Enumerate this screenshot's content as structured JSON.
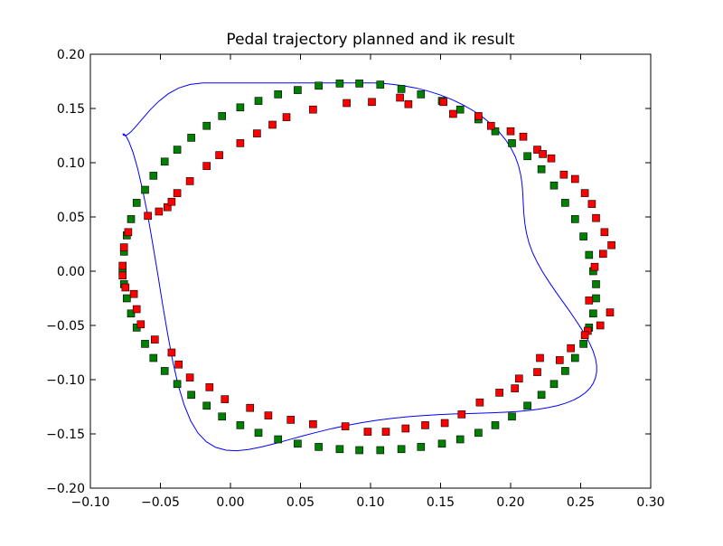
{
  "chart_data": {
    "type": "scatter",
    "title": "Pedal trajectory planned and ik result",
    "xlabel": "",
    "ylabel": "",
    "xlim": [
      -0.1,
      0.3
    ],
    "ylim": [
      -0.2,
      0.2
    ],
    "x_ticks": [
      "−0.10",
      "−0.05",
      "0.00",
      "0.05",
      "0.10",
      "0.15",
      "0.20",
      "0.25",
      "0.30"
    ],
    "y_ticks": [
      "−0.20",
      "−0.15",
      "−0.10",
      "−0.05",
      "0.00",
      "0.05",
      "0.10",
      "0.15",
      "0.20"
    ],
    "x_tick_values": [
      -0.1,
      -0.05,
      0.0,
      0.05,
      0.1,
      0.15,
      0.2,
      0.25,
      0.3
    ],
    "y_tick_values": [
      -0.2,
      -0.15,
      -0.1,
      -0.05,
      0.0,
      0.05,
      0.1,
      0.15,
      0.2
    ],
    "grid": false,
    "legend": "none",
    "series": [
      {
        "style": "line",
        "color": "#0000ff",
        "x": [
          0.0925,
          0.1026,
          0.1126,
          0.1224,
          0.132,
          0.1412,
          0.1501,
          0.1586,
          0.1665,
          0.1739,
          0.1806,
          0.1867,
          0.192,
          0.1966,
          0.2004,
          0.2034,
          0.2057,
          0.2072,
          0.2082,
          0.2087,
          0.209,
          0.2094,
          0.2101,
          0.2113,
          0.2131,
          0.2157,
          0.219,
          0.223,
          0.2274,
          0.232,
          0.2367,
          0.2414,
          0.2458,
          0.2499,
          0.2536,
          0.2566,
          0.259,
          0.2606,
          0.2614,
          0.2614,
          0.2606,
          0.259,
          0.2566,
          0.2534,
          0.2495,
          0.2449,
          0.2396,
          0.2337,
          0.2272,
          0.2201,
          0.2126,
          0.2045,
          0.196,
          0.187,
          0.1777,
          0.168,
          0.158,
          0.1477,
          0.1372,
          0.1265,
          0.1157,
          0.1048,
          0.0939,
          0.083,
          0.0722,
          0.0616,
          0.0512,
          0.0411,
          0.0313,
          0.0219,
          0.013,
          0.0046,
          -0.0032,
          -0.0105,
          -0.0171,
          -0.0231,
          -0.0284,
          -0.0331,
          -0.0374,
          -0.0412,
          -0.0448,
          -0.0483,
          -0.0518,
          -0.0554,
          -0.059,
          -0.0627,
          -0.0662,
          -0.0694,
          -0.0723,
          -0.0745,
          -0.076,
          -0.0767,
          -0.0765,
          -0.0755,
          -0.0736,
          -0.0708,
          -0.0672,
          -0.0627,
          -0.0574,
          -0.0513,
          -0.0444,
          -0.0369,
          -0.0287,
          -0.0198,
          -0.0105,
          -0.0006,
          0.0097,
          0.0203,
          0.0311,
          0.0421,
          0.0532,
          0.0643,
          0.0753,
          0.0862,
          0.0925
        ],
        "y": [
          0.1735,
          0.1735,
          0.1727,
          0.1712,
          0.169,
          0.166,
          0.1623,
          0.158,
          0.153,
          0.1475,
          0.1415,
          0.135,
          0.1281,
          0.1208,
          0.1132,
          0.1053,
          0.0971,
          0.0887,
          0.0801,
          0.0714,
          0.0625,
          0.0535,
          0.0444,
          0.0353,
          0.0262,
          0.0171,
          0.0081,
          -0.0009,
          -0.0098,
          -0.0186,
          -0.0272,
          -0.0356,
          -0.0438,
          -0.0518,
          -0.0595,
          -0.0669,
          -0.0739,
          -0.0806,
          -0.0869,
          -0.0928,
          -0.0983,
          -0.1033,
          -0.1079,
          -0.112,
          -0.1156,
          -0.1188,
          -0.1215,
          -0.1238,
          -0.1257,
          -0.1272,
          -0.1284,
          -0.1293,
          -0.13,
          -0.1305,
          -0.1309,
          -0.1313,
          -0.1317,
          -0.1323,
          -0.1331,
          -0.1342,
          -0.1356,
          -0.1374,
          -0.1396,
          -0.1422,
          -0.1452,
          -0.1485,
          -0.152,
          -0.1556,
          -0.1591,
          -0.1621,
          -0.1644,
          -0.1655,
          -0.165,
          -0.1624,
          -0.1573,
          -0.1493,
          -0.138,
          -0.1231,
          -0.1046,
          -0.0829,
          -0.0583,
          -0.0315,
          -0.0034,
          0.0246,
          0.0512,
          0.0748,
          0.0943,
          0.109,
          0.1189,
          0.1245,
          0.1266,
          0.1265,
          0.1255,
          0.1249,
          0.1258,
          0.1288,
          0.1339,
          0.1407,
          0.1486,
          0.1565,
          0.1636,
          0.1689,
          0.1722,
          0.1735,
          0.1735,
          0.1735,
          0.1735,
          0.1735,
          0.1735,
          0.1735,
          0.1735,
          0.1735,
          0.1735,
          0.1735,
          0.1735
        ]
      },
      {
        "name": "",
        "style": "marker",
        "marker": "square",
        "color": "#008000",
        "x": [
          0.092,
          0.107,
          0.122,
          0.136,
          0.151,
          0.164,
          0.177,
          0.189,
          0.201,
          0.212,
          0.222,
          0.231,
          0.239,
          0.246,
          0.252,
          0.256,
          0.259,
          0.261,
          0.261,
          0.259,
          0.256,
          0.252,
          0.246,
          0.239,
          0.231,
          0.222,
          0.212,
          0.201,
          0.189,
          0.177,
          0.164,
          0.151,
          0.136,
          0.122,
          0.107,
          0.092,
          0.078,
          0.063,
          0.048,
          0.034,
          0.02,
          0.007,
          -0.006,
          -0.017,
          -0.028,
          -0.038,
          -0.047,
          -0.055,
          -0.061,
          -0.067,
          -0.071,
          -0.074,
          -0.076,
          -0.077,
          -0.076,
          -0.074,
          -0.071,
          -0.067,
          -0.061,
          -0.055,
          -0.047,
          -0.038,
          -0.028,
          -0.017,
          -0.006,
          0.007,
          0.02,
          0.034,
          0.048,
          0.063,
          0.078
        ],
        "y": [
          0.173,
          0.172,
          0.168,
          0.163,
          0.157,
          0.149,
          0.14,
          0.129,
          0.118,
          0.106,
          0.094,
          0.079,
          0.063,
          0.048,
          0.032,
          0.015,
          0.0,
          -0.012,
          -0.025,
          -0.039,
          -0.052,
          -0.067,
          -0.08,
          -0.092,
          -0.104,
          -0.114,
          -0.124,
          -0.134,
          -0.142,
          -0.149,
          -0.155,
          -0.159,
          -0.162,
          -0.164,
          -0.165,
          -0.165,
          -0.164,
          -0.162,
          -0.159,
          -0.155,
          -0.149,
          -0.142,
          -0.134,
          -0.124,
          -0.114,
          -0.104,
          -0.092,
          -0.08,
          -0.067,
          -0.052,
          -0.039,
          -0.025,
          -0.012,
          0.0,
          0.018,
          0.033,
          0.048,
          0.063,
          0.075,
          0.088,
          0.101,
          0.112,
          0.123,
          0.134,
          0.143,
          0.151,
          0.157,
          0.163,
          0.167,
          0.171,
          0.173
        ]
      },
      {
        "name": "",
        "style": "marker",
        "marker": "square",
        "color": "#ff0000",
        "x": [
          0.101,
          0.121,
          0.127,
          0.152,
          0.159,
          0.177,
          0.186,
          0.2,
          0.209,
          0.219,
          0.223,
          0.229,
          0.238,
          0.246,
          0.253,
          0.258,
          0.261,
          0.267,
          0.272,
          0.266,
          0.26,
          0.256,
          0.271,
          0.264,
          0.255,
          0.253,
          0.243,
          0.235,
          0.221,
          0.219,
          0.206,
          0.203,
          0.192,
          0.178,
          0.165,
          0.153,
          0.139,
          0.125,
          0.111,
          0.098,
          0.082,
          0.059,
          0.043,
          0.027,
          0.014,
          -0.004,
          -0.015,
          -0.029,
          -0.037,
          -0.042,
          -0.054,
          -0.064,
          -0.067,
          -0.069,
          -0.075,
          -0.077,
          -0.077,
          -0.076,
          -0.073,
          -0.059,
          -0.051,
          -0.045,
          -0.042,
          -0.038,
          -0.029,
          -0.017,
          -0.008,
          0.007,
          0.019,
          0.03,
          0.04,
          0.059,
          0.083
        ],
        "y": [
          0.156,
          0.16,
          0.154,
          0.156,
          0.145,
          0.143,
          0.134,
          0.129,
          0.124,
          0.112,
          0.108,
          0.104,
          0.089,
          0.085,
          0.072,
          0.062,
          0.049,
          0.036,
          0.024,
          0.016,
          0.004,
          -0.027,
          -0.038,
          -0.05,
          -0.055,
          -0.059,
          -0.071,
          -0.082,
          -0.08,
          -0.093,
          -0.099,
          -0.108,
          -0.112,
          -0.121,
          -0.132,
          -0.14,
          -0.142,
          -0.145,
          -0.148,
          -0.148,
          -0.143,
          -0.141,
          -0.137,
          -0.133,
          -0.126,
          -0.118,
          -0.107,
          -0.098,
          -0.086,
          -0.075,
          -0.063,
          -0.049,
          -0.035,
          -0.021,
          -0.015,
          -0.004,
          0.005,
          0.022,
          0.036,
          0.051,
          0.055,
          0.059,
          0.064,
          0.072,
          0.083,
          0.097,
          0.107,
          0.118,
          0.127,
          0.135,
          0.142,
          0.149,
          0.155
        ]
      }
    ]
  }
}
